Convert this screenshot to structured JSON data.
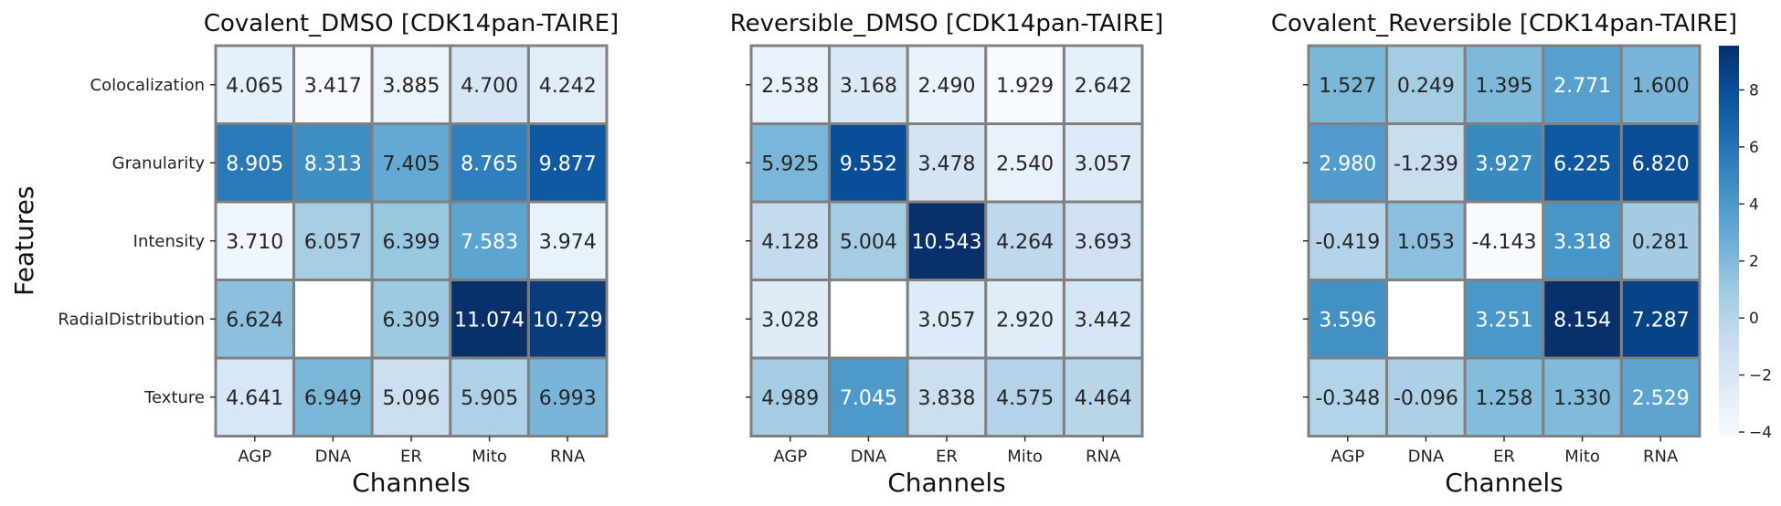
{
  "chart_data": [
    {
      "type": "heatmap",
      "title": "Covalent_DMSO [CDK14pan-TAIRE]",
      "xlabel": "Channels",
      "ylabel": "Features",
      "x": [
        "AGP",
        "DNA",
        "ER",
        "Mito",
        "RNA"
      ],
      "y": [
        "Colocalization",
        "Granularity",
        "Intensity",
        "RadialDistribution",
        "Texture"
      ],
      "values": [
        [
          4.065,
          3.417,
          3.885,
          4.7,
          4.242
        ],
        [
          8.905,
          8.313,
          7.405,
          8.765,
          9.877
        ],
        [
          3.71,
          6.057,
          6.399,
          7.583,
          3.974
        ],
        [
          6.624,
          null,
          6.309,
          11.074,
          10.729
        ],
        [
          4.641,
          6.949,
          5.096,
          5.905,
          6.993
        ]
      ],
      "labels": [
        [
          "4.065",
          "3.417",
          "3.885",
          "4.700",
          "4.242"
        ],
        [
          "8.905",
          "8.313",
          "7.405",
          "8.765",
          "9.877"
        ],
        [
          "3.710",
          "6.057",
          "6.399",
          "7.583",
          "3.974"
        ],
        [
          "6.624",
          "",
          "6.309",
          "11.074",
          "10.729"
        ],
        [
          "4.641",
          "6.949",
          "5.096",
          "5.905",
          "6.993"
        ]
      ]
    },
    {
      "type": "heatmap",
      "title": "Reversible_DMSO [CDK14pan-TAIRE]",
      "xlabel": "Channels",
      "ylabel": "",
      "x": [
        "AGP",
        "DNA",
        "ER",
        "Mito",
        "RNA"
      ],
      "y": [],
      "values": [
        [
          2.538,
          3.168,
          2.49,
          1.929,
          2.642
        ],
        [
          5.925,
          9.552,
          3.478,
          2.54,
          3.057
        ],
        [
          4.128,
          5.004,
          10.543,
          4.264,
          3.693
        ],
        [
          3.028,
          null,
          3.057,
          2.92,
          3.442
        ],
        [
          4.989,
          7.045,
          3.838,
          4.575,
          4.464
        ]
      ],
      "labels": [
        [
          "2.538",
          "3.168",
          "2.490",
          "1.929",
          "2.642"
        ],
        [
          "5.925",
          "9.552",
          "3.478",
          "2.540",
          "3.057"
        ],
        [
          "4.128",
          "5.004",
          "10.543",
          "4.264",
          "3.693"
        ],
        [
          "3.028",
          "",
          "3.057",
          "2.920",
          "3.442"
        ],
        [
          "4.989",
          "7.045",
          "3.838",
          "4.575",
          "4.464"
        ]
      ]
    },
    {
      "type": "heatmap",
      "title": "Covalent_Reversible [CDK14pan-TAIRE]",
      "xlabel": "Channels",
      "ylabel": "",
      "x": [
        "AGP",
        "DNA",
        "ER",
        "Mito",
        "RNA"
      ],
      "y": [],
      "values": [
        [
          1.527,
          0.249,
          1.395,
          2.771,
          1.6
        ],
        [
          2.98,
          -1.239,
          3.927,
          6.225,
          6.82
        ],
        [
          -0.419,
          1.053,
          -4.143,
          3.318,
          0.281
        ],
        [
          3.596,
          null,
          3.251,
          8.154,
          7.287
        ],
        [
          -0.348,
          -0.096,
          1.258,
          1.33,
          2.529
        ]
      ],
      "labels": [
        [
          "1.527",
          "0.249",
          "1.395",
          "2.771",
          "1.600"
        ],
        [
          "2.980",
          "-1.239",
          "3.927",
          "6.225",
          "6.820"
        ],
        [
          "-0.419",
          "1.053",
          "-4.143",
          "3.318",
          "0.281"
        ],
        [
          "3.596",
          "",
          "3.251",
          "8.154",
          "7.287"
        ],
        [
          "-0.348",
          "-0.096",
          "1.258",
          "1.330",
          "2.529"
        ]
      ],
      "colorbar": {
        "colormap": "Blues",
        "range": [
          -4.143,
          9.552
        ],
        "ticks": [
          -4,
          -2,
          0,
          2,
          4,
          6,
          8
        ],
        "tick_labels": [
          "−4",
          "−2",
          "0",
          "2",
          "4",
          "6",
          "8"
        ]
      }
    }
  ]
}
